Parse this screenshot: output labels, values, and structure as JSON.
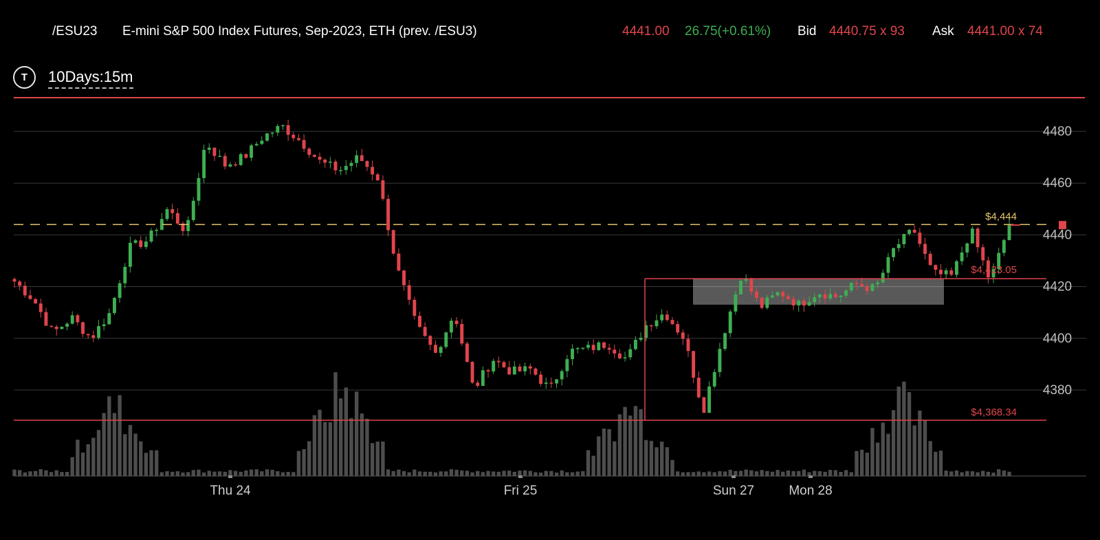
{
  "header": {
    "symbol": "/ESU23",
    "description": "E-mini S&P 500 Index Futures, Sep-2023, ETH (prev. /ESU3)",
    "last": "4441.00",
    "change": "26.75(+0.61%)",
    "bid_label": "Bid",
    "bid": "4440.75 x 93",
    "ask_label": "Ask",
    "ask": "4441.00 x 74"
  },
  "toolbar": {
    "timeframe_icon_letter": "T",
    "timeframe": "10Days:15m"
  },
  "colors": {
    "up": "#3fae52",
    "down": "#e0454c",
    "volume": "#4d4d4d",
    "grid": "#3a3a3a",
    "dashed_level": "#e7c56a",
    "level_line": "#e0454c"
  },
  "chart_data": {
    "type": "candlestick",
    "interval": "15m",
    "range": "10Days",
    "y_ticks": [
      4380,
      4400,
      4420,
      4440,
      4460,
      4480
    ],
    "ylim": [
      4370,
      4497
    ],
    "x_labels": [
      "Thu 24",
      "Fri 25",
      "Sun 27",
      "Mon 28"
    ],
    "annotations": [
      {
        "label": "$4,444",
        "value": 4444,
        "style": "dashed",
        "color": "#e7c56a"
      },
      {
        "label": "$4,423.05",
        "value": 4423.05,
        "style": "solid",
        "color": "#e0454c"
      },
      {
        "label": "$4,368.34",
        "value": 4368.34,
        "style": "solid",
        "color": "#e0454c"
      }
    ],
    "range_box": {
      "low": 4413,
      "high": 4423
    },
    "path": [
      4422,
      4415,
      4402,
      4408,
      4400,
      4410,
      4435,
      4438,
      4450,
      4441,
      4476,
      4467,
      4470,
      4478,
      4482,
      4476,
      4468,
      4465,
      4470,
      4462,
      4427,
      4405,
      4394,
      4410,
      4380,
      4392,
      4387,
      4388,
      4380,
      4395,
      4396,
      4398,
      4392,
      4405,
      4410,
      4400,
      4372,
      4400,
      4425,
      4412,
      4418,
      4413,
      4418,
      4416,
      4421,
      4419,
      4435,
      4442,
      4425,
      4424,
      4442,
      4422,
      4444
    ],
    "volume_bursts": [
      {
        "center": 0.1,
        "height": 0.55
      },
      {
        "center": 0.33,
        "height": 0.7
      },
      {
        "center": 0.62,
        "height": 0.55
      },
      {
        "center": 0.89,
        "height": 0.6
      }
    ]
  }
}
